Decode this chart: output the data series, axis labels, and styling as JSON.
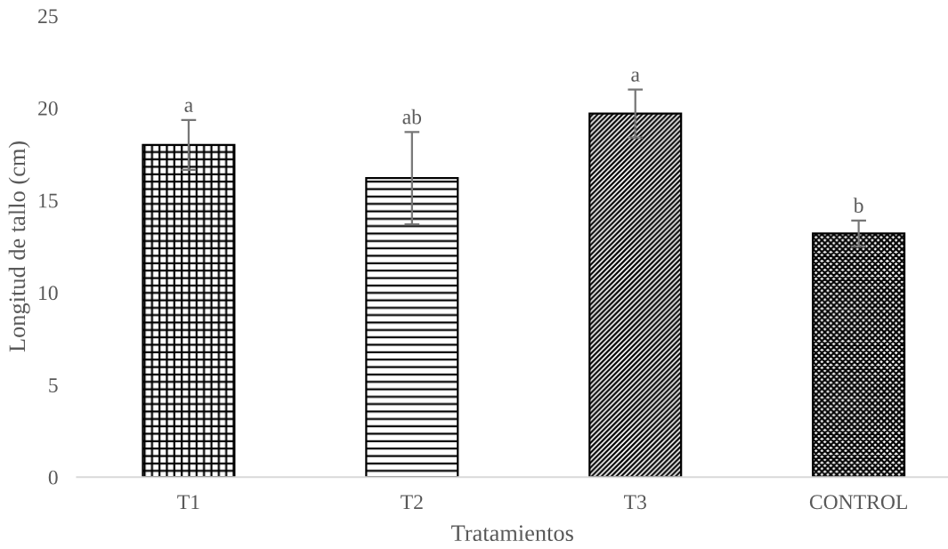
{
  "chart_data": {
    "type": "bar",
    "xlabel": "Tratamientos",
    "ylabel": "Longitud de tallo (cm)",
    "categories": [
      "T1",
      "T2",
      "T3",
      "CONTROL"
    ],
    "values": [
      18.0,
      16.2,
      19.7,
      13.2
    ],
    "errors": [
      1.35,
      2.5,
      1.3,
      0.7
    ],
    "colors": [
      "#000000",
      "#000000",
      "#000000",
      "#000000"
    ],
    "ylim": [
      0,
      25
    ],
    "yticks": [
      0,
      5,
      10,
      15,
      20,
      25
    ],
    "annotations": [
      {
        "text": "a",
        "x": "T1",
        "y": 19.35
      },
      {
        "text": "ab",
        "x": "T2",
        "y": 18.7
      },
      {
        "text": "a",
        "x": "T3",
        "y": 21.0
      },
      {
        "text": "b",
        "x": "CONTROL",
        "y": 13.9
      }
    ]
  }
}
